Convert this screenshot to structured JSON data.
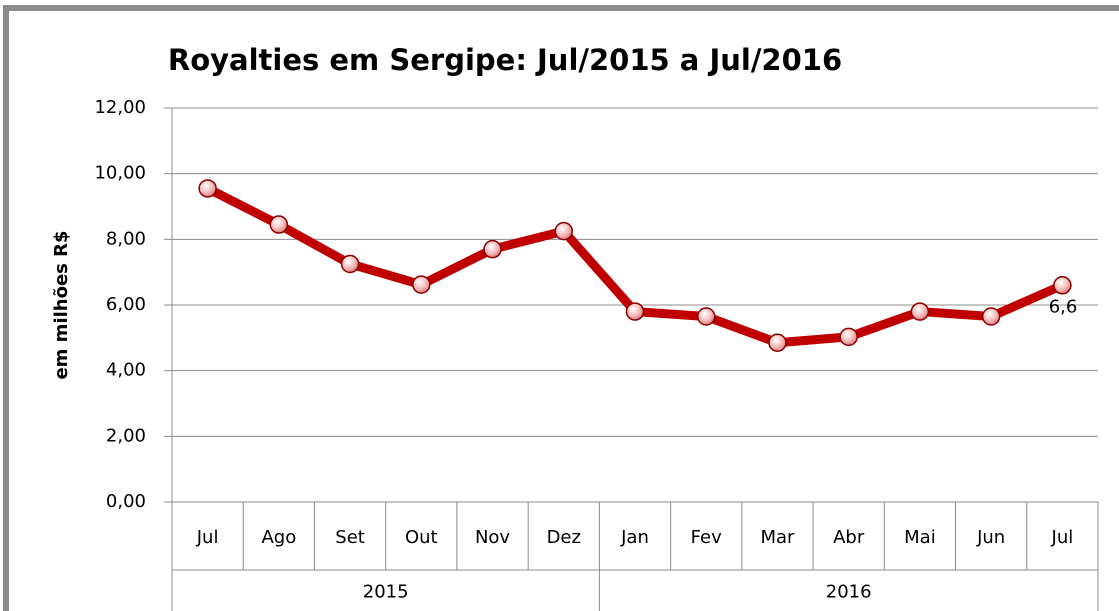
{
  "chart_data": {
    "type": "line",
    "title": "Royalties em Sergipe: Jul/2015 a Jul/2016",
    "y_label": "em milhões R$",
    "categories": [
      "Jul",
      "Ago",
      "Set",
      "Out",
      "Nov",
      "Dez",
      "Jan",
      "Fev",
      "Mar",
      "Abr",
      "Mai",
      "Jun",
      "Jul"
    ],
    "groups": [
      {
        "label": "2015",
        "span": 6
      },
      {
        "label": "2016",
        "span": 7
      }
    ],
    "series": [
      {
        "name": "Royalties",
        "color": "#c00000",
        "values": [
          9.55,
          8.45,
          7.25,
          6.62,
          7.7,
          8.25,
          5.8,
          5.65,
          4.85,
          5.03,
          5.8,
          5.65,
          6.6
        ],
        "value_labels": [
          null,
          null,
          null,
          null,
          null,
          null,
          null,
          null,
          null,
          null,
          null,
          null,
          "6,6"
        ]
      }
    ],
    "ylim": [
      0,
      12
    ],
    "yticks": [
      {
        "value": 0,
        "label": "0,00"
      },
      {
        "value": 2,
        "label": "2,00"
      },
      {
        "value": 4,
        "label": "4,00"
      },
      {
        "value": 6,
        "label": "6,00"
      },
      {
        "value": 8,
        "label": "8,00"
      },
      {
        "value": 10,
        "label": "10,00"
      },
      {
        "value": 12,
        "label": "12,00"
      }
    ],
    "grid": true
  }
}
